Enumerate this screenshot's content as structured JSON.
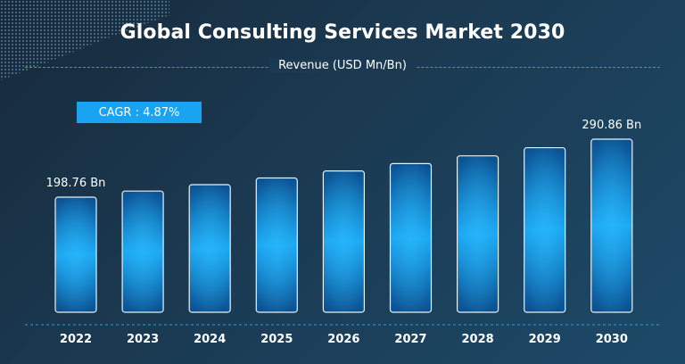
{
  "chart_data": {
    "type": "bar",
    "title": "Global Consulting Services Market 2030",
    "subtitle": "Revenue (USD Mn/Bn)",
    "annotation": "CAGR : 4.87%",
    "categories": [
      "2022",
      "2023",
      "2024",
      "2025",
      "2026",
      "2027",
      "2028",
      "2029",
      "2030"
    ],
    "values": [
      198.76,
      208.4,
      218.6,
      229.2,
      240.4,
      252.1,
      264.4,
      277.3,
      290.86
    ],
    "data_labels": [
      {
        "index": 0,
        "text": "198.76 Bn"
      },
      {
        "index": 8,
        "text": "290.86 Bn"
      }
    ],
    "xlabel": "",
    "ylabel": "",
    "ylim": [
      0,
      310
    ],
    "grid": false,
    "colors": {
      "bar_top": "#0a5aa0",
      "bar_mid": "#1aa3f0",
      "accent": "#1aa3f0"
    }
  }
}
